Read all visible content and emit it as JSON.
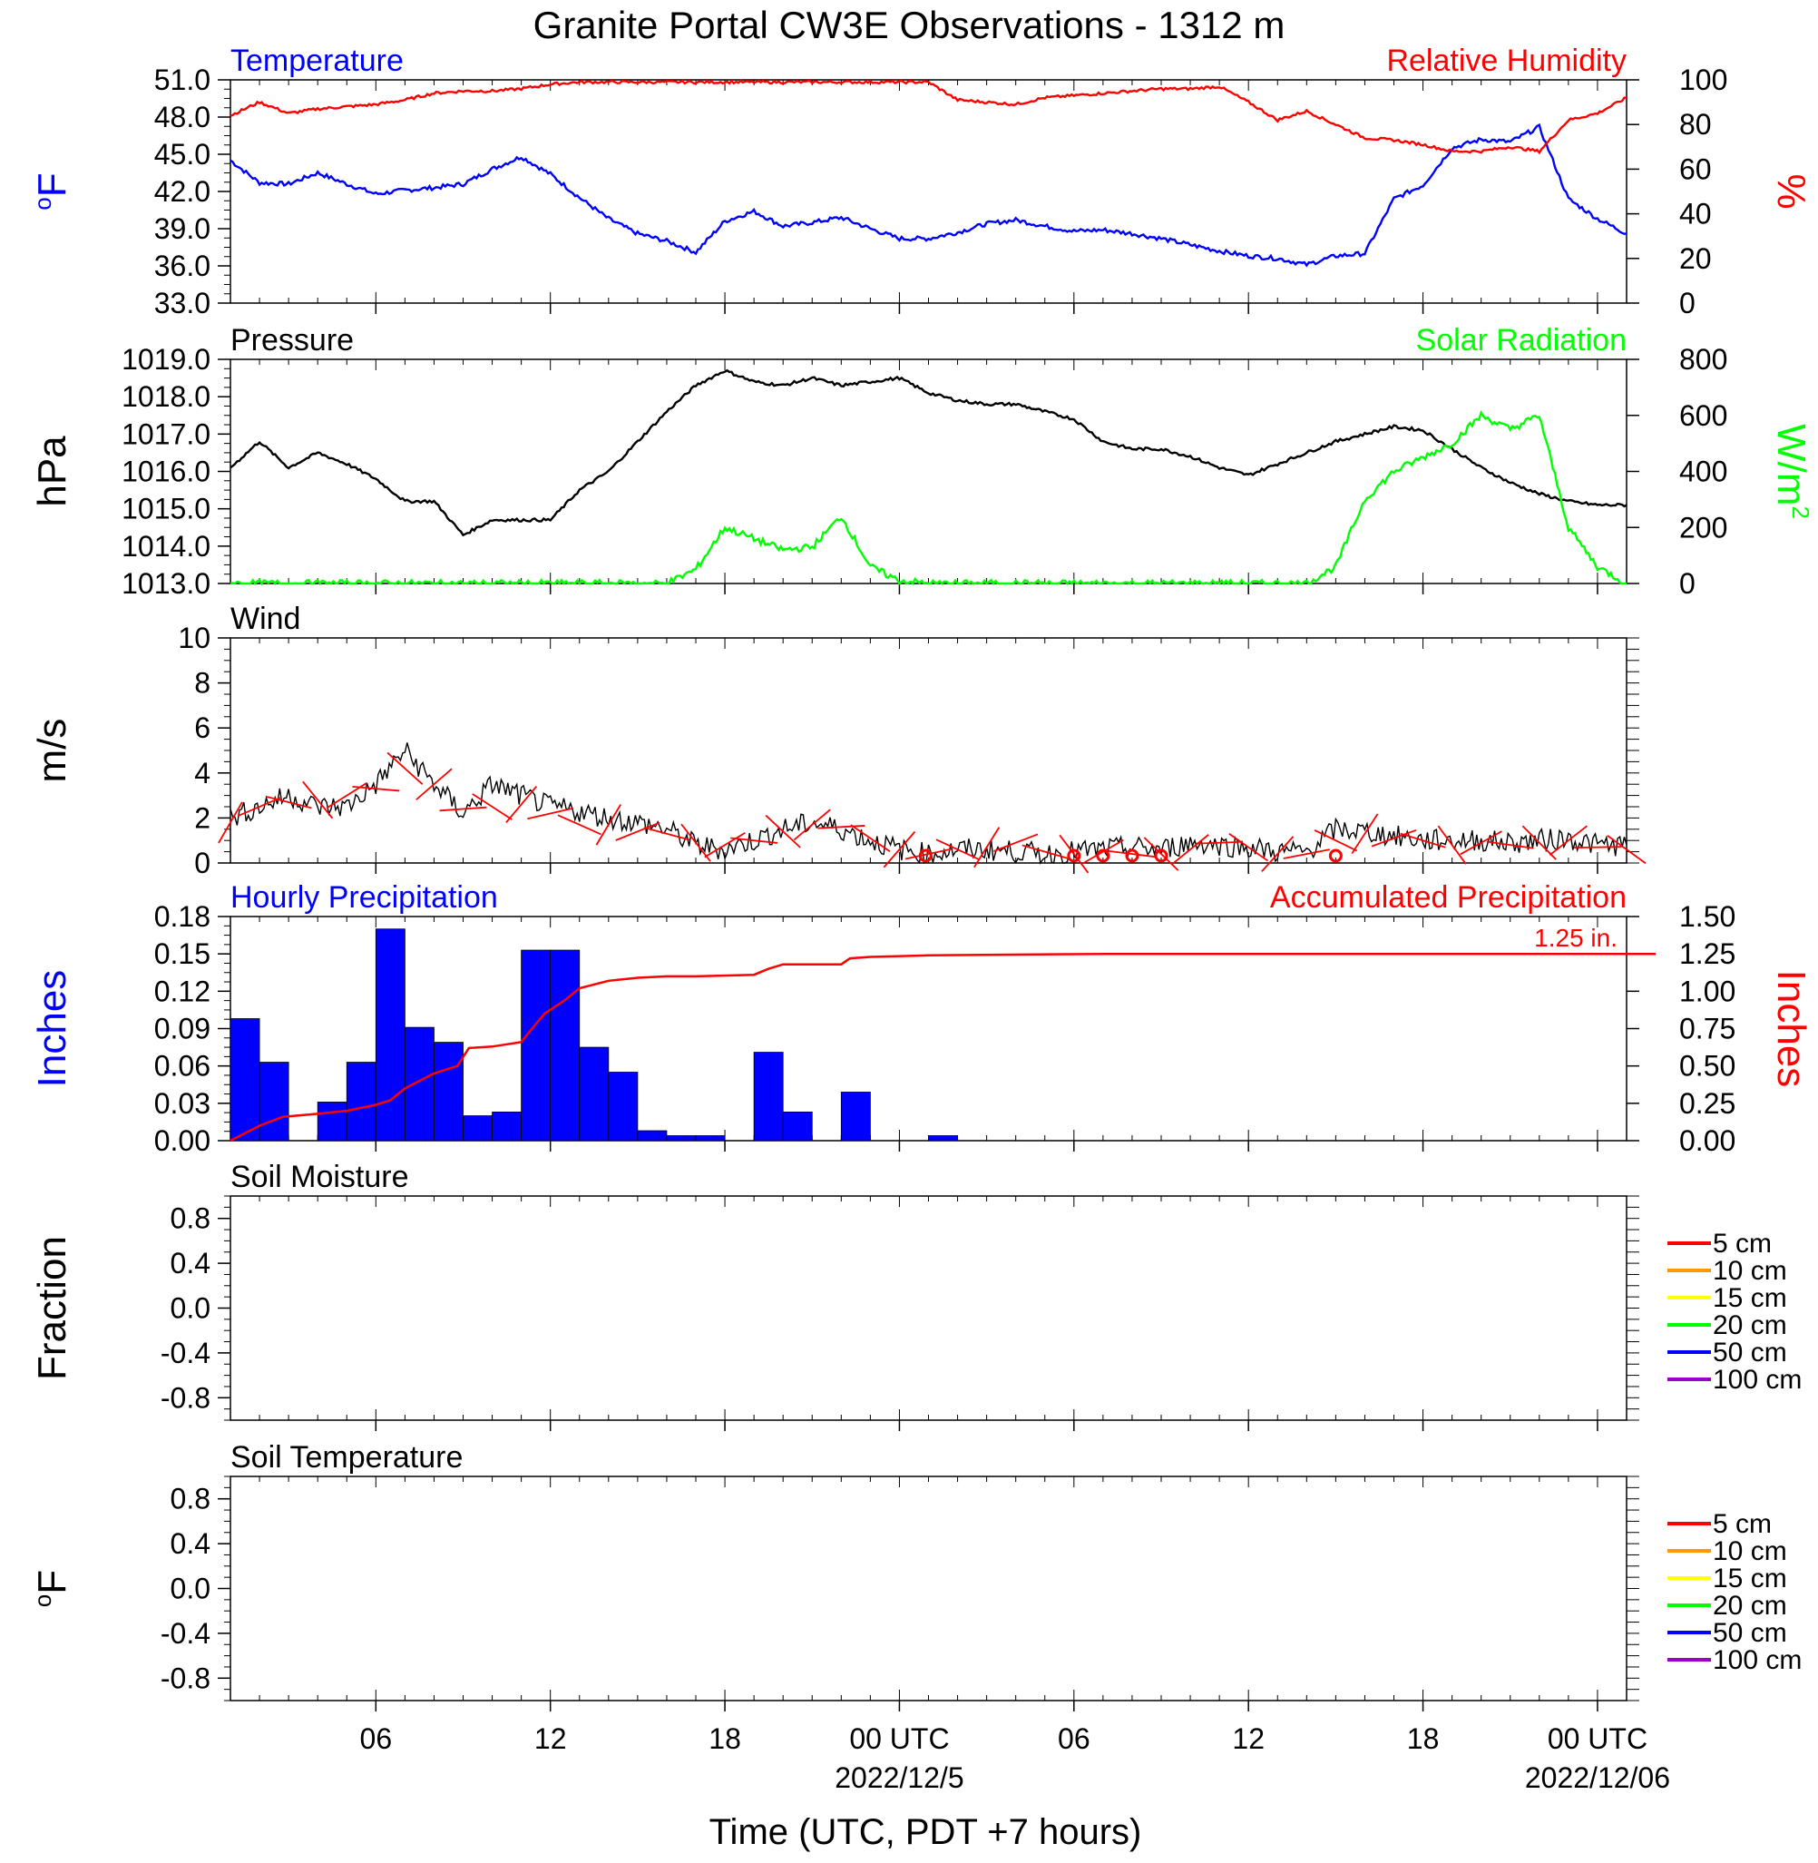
{
  "title": "Granite Portal CW3E Observations - 1312 m",
  "x_axis": {
    "label": "Time (UTC, PDT +7 hours)",
    "ticks": [
      "06",
      "12",
      "18",
      "00 UTC",
      "06",
      "12",
      "18",
      "00 UTC"
    ],
    "date_labels": [
      "2022/12/5",
      "2022/12/06"
    ]
  },
  "chart_data": [
    {
      "type": "line",
      "id": "temp-rh",
      "left_title": "Temperature",
      "right_title": "Relative Humidity",
      "left_ylabel": "oF",
      "right_ylabel": "%",
      "left_ylim": [
        33.0,
        51.0
      ],
      "right_ylim": [
        0,
        100
      ],
      "left_ticks": [
        "51.0",
        "48.0",
        "45.0",
        "42.0",
        "39.0",
        "36.0",
        "33.0"
      ],
      "right_ticks": [
        "100",
        "80",
        "60",
        "40",
        "20",
        "0"
      ],
      "x_hours": [
        1,
        2,
        3,
        4,
        5,
        6,
        7,
        8,
        9,
        10,
        11,
        12,
        13,
        14,
        15,
        16,
        17,
        18,
        19,
        20,
        21,
        22,
        23,
        24,
        25,
        26,
        27,
        28,
        29,
        30,
        31,
        32,
        33,
        34,
        35,
        36,
        37,
        38,
        39,
        40,
        41,
        42,
        43,
        44,
        45,
        46,
        47,
        48,
        49
      ],
      "series": [
        {
          "name": "Temperature",
          "axis": "left",
          "color": "#0000ff",
          "values": [
            44.5,
            42.7,
            42.6,
            43.5,
            42.6,
            41.8,
            42.1,
            42.3,
            42.6,
            43.8,
            44.8,
            43.4,
            41.5,
            39.8,
            38.6,
            38.0,
            37.1,
            39.6,
            40.4,
            39.2,
            39.5,
            39.9,
            39.0,
            38.2,
            38.2,
            38.7,
            39.4,
            39.7,
            39.2,
            38.8,
            38.9,
            38.6,
            38.2,
            37.7,
            37.2,
            36.8,
            36.6,
            36.1,
            36.8,
            37.0,
            41.4,
            42.5,
            45.5,
            46.2,
            46.0,
            47.2,
            41.4,
            39.8,
            38.6
          ]
        },
        {
          "name": "Relative Humidity",
          "axis": "right",
          "color": "#ff0000",
          "values": [
            84,
            90,
            85,
            87,
            88,
            89,
            91,
            94,
            95,
            95,
            96,
            98,
            99,
            99,
            99,
            99,
            99,
            99,
            99,
            99,
            99,
            99,
            99,
            99,
            99,
            91,
            90,
            89,
            92,
            93,
            94,
            95,
            96,
            96,
            97,
            90,
            82,
            86,
            80,
            74,
            73,
            71,
            68,
            68,
            70,
            68,
            82,
            85,
            92
          ]
        }
      ]
    },
    {
      "type": "line",
      "id": "pressure-solar",
      "left_title": "Pressure",
      "right_title": "Solar Radiation",
      "left_ylabel": "hPa",
      "right_ylabel": "W/m2",
      "left_ylim": [
        1013.0,
        1019.0
      ],
      "right_ylim": [
        0,
        800
      ],
      "left_ticks": [
        "1019.0",
        "1018.0",
        "1017.0",
        "1016.0",
        "1015.0",
        "1014.0",
        "1013.0"
      ],
      "right_ticks": [
        "800",
        "600",
        "400",
        "200",
        "0"
      ],
      "x_hours": [
        1,
        2,
        3,
        4,
        5,
        6,
        7,
        8,
        9,
        10,
        11,
        12,
        13,
        14,
        15,
        16,
        17,
        18,
        19,
        20,
        21,
        22,
        23,
        24,
        25,
        26,
        27,
        28,
        29,
        30,
        31,
        32,
        33,
        34,
        35,
        36,
        37,
        38,
        39,
        40,
        41,
        42,
        43,
        44,
        45,
        46,
        47,
        48,
        49
      ],
      "series": [
        {
          "name": "Pressure",
          "axis": "left",
          "color": "#000000",
          "values": [
            1016.1,
            1016.8,
            1016.1,
            1016.5,
            1016.2,
            1015.8,
            1015.2,
            1015.2,
            1014.3,
            1014.7,
            1014.7,
            1014.7,
            1015.5,
            1016.0,
            1016.8,
            1017.6,
            1018.3,
            1018.7,
            1018.4,
            1018.3,
            1018.5,
            1018.3,
            1018.4,
            1018.5,
            1018.1,
            1017.9,
            1017.8,
            1017.8,
            1017.6,
            1017.4,
            1016.8,
            1016.6,
            1016.6,
            1016.4,
            1016.1,
            1015.9,
            1016.2,
            1016.5,
            1016.8,
            1017.0,
            1017.2,
            1017.1,
            1016.6,
            1016.1,
            1015.7,
            1015.4,
            1015.2,
            1015.1,
            1015.1
          ]
        },
        {
          "name": "Solar Radiation",
          "axis": "right",
          "color": "#00ff00",
          "values": [
            0,
            0,
            0,
            0,
            0,
            0,
            0,
            0,
            0,
            0,
            0,
            0,
            0,
            0,
            0,
            0,
            50,
            200,
            160,
            120,
            130,
            240,
            60,
            10,
            0,
            0,
            0,
            0,
            0,
            0,
            0,
            0,
            0,
            0,
            0,
            0,
            0,
            0,
            60,
            300,
            400,
            450,
            500,
            600,
            550,
            600,
            200,
            60,
            0
          ]
        }
      ]
    },
    {
      "type": "line",
      "id": "wind",
      "left_title": "Wind",
      "left_ylabel": "m/s",
      "left_ylim": [
        0,
        10
      ],
      "left_ticks": [
        "10",
        "8",
        "6",
        "4",
        "2",
        "0"
      ],
      "x_hours": [
        1,
        2,
        3,
        4,
        5,
        6,
        7,
        8,
        9,
        10,
        11,
        12,
        13,
        14,
        15,
        16,
        17,
        18,
        19,
        20,
        21,
        22,
        23,
        24,
        25,
        26,
        27,
        28,
        29,
        30,
        31,
        32,
        33,
        34,
        35,
        36,
        37,
        38,
        39,
        40,
        41,
        42,
        43,
        44,
        45,
        46,
        47,
        48,
        49
      ],
      "series": [
        {
          "name": "Wind speed",
          "axis": "left",
          "color": "#000000",
          "values": [
            2.0,
            2.5,
            3.0,
            2.5,
            2.5,
            3.5,
            5.0,
            3.5,
            2.2,
            3.5,
            3.0,
            2.5,
            2.3,
            2.0,
            1.8,
            1.5,
            0.8,
            0.6,
            1.0,
            1.5,
            1.8,
            1.5,
            1.0,
            0.6,
            0.4,
            0.6,
            0.6,
            0.5,
            0.4,
            0.5,
            0.6,
            0.7,
            0.6,
            0.9,
            0.8,
            0.7,
            0.5,
            0.5,
            1.5,
            1.4,
            1.2,
            1.0,
            1.0,
            1.0,
            0.9,
            1.0,
            1.1,
            0.8,
            0.8
          ]
        },
        {
          "name": "Wind barbs",
          "axis": "left",
          "color": "#ff0000",
          "values": [
            1.8,
            2.5,
            2.7,
            2.8,
            3.0,
            3.3,
            4.2,
            3.5,
            2.4,
            2.5,
            2.6,
            2.2,
            1.7,
            1.7,
            1.4,
            1.3,
            0.9,
            0.8,
            1.0,
            1.4,
            1.7,
            1.6,
            1.1,
            0.6,
            0.4,
            0.6,
            0.7,
            0.9,
            0.5,
            0.4,
            0.5,
            0.4,
            0.4,
            0.6,
            0.9,
            0.7,
            0.4,
            0.4,
            1.0,
            1.3,
            1.1,
            1.0,
            0.8,
            0.9,
            0.8,
            0.9,
            1.0,
            0.7,
            0.6
          ]
        }
      ],
      "calm_markers_hours": [
        24.9,
        30,
        31,
        32,
        33,
        39
      ]
    },
    {
      "type": "bar",
      "id": "precip",
      "left_title": "Hourly Precipitation",
      "right_title": "Accumulated Precipitation",
      "left_ylabel": "Inches",
      "right_ylabel": "Inches",
      "left_ylim": [
        0,
        0.18
      ],
      "right_ylim": [
        0,
        1.5
      ],
      "left_ticks": [
        "0.18",
        "0.15",
        "0.12",
        "0.09",
        "0.06",
        "0.03",
        "0.00"
      ],
      "right_ticks": [
        "1.50",
        "1.25",
        "1.00",
        "0.75",
        "0.50",
        "0.25",
        "0.00"
      ],
      "total_label": "1.25 in.",
      "hourly_bars": [
        {
          "hour": 0,
          "value": 0.098
        },
        {
          "hour": 1,
          "value": 0.063
        },
        {
          "hour": 2,
          "value": 0.0
        },
        {
          "hour": 3,
          "value": 0.031
        },
        {
          "hour": 4,
          "value": 0.063
        },
        {
          "hour": 5,
          "value": 0.17
        },
        {
          "hour": 6,
          "value": 0.091
        },
        {
          "hour": 7,
          "value": 0.079
        },
        {
          "hour": 8,
          "value": 0.02
        },
        {
          "hour": 9,
          "value": 0.023
        },
        {
          "hour": 10,
          "value": 0.153
        },
        {
          "hour": 11,
          "value": 0.153
        },
        {
          "hour": 12,
          "value": 0.075
        },
        {
          "hour": 13,
          "value": 0.055
        },
        {
          "hour": 14,
          "value": 0.008
        },
        {
          "hour": 15,
          "value": 0.004
        },
        {
          "hour": 16,
          "value": 0.004
        },
        {
          "hour": 17,
          "value": 0.0
        },
        {
          "hour": 18,
          "value": 0.071
        },
        {
          "hour": 19,
          "value": 0.023
        },
        {
          "hour": 20,
          "value": 0.0
        },
        {
          "hour": 21,
          "value": 0.039
        },
        {
          "hour": 22,
          "value": 0.0
        },
        {
          "hour": 23,
          "value": 0.0
        },
        {
          "hour": 24,
          "value": 0.004
        }
      ],
      "accumulated": {
        "name": "Accumulated Precipitation",
        "color": "#ff0000",
        "hours": [
          0,
          1,
          1.8,
          3,
          4,
          5,
          5.5,
          6,
          7,
          7.8,
          8.2,
          9,
          10,
          10.2,
          10.8,
          11.5,
          12,
          13,
          14,
          15,
          16,
          18,
          18.5,
          19,
          21,
          21.3,
          22,
          24,
          30,
          49
        ],
        "values": [
          0.0,
          0.1,
          0.16,
          0.18,
          0.2,
          0.24,
          0.27,
          0.35,
          0.45,
          0.5,
          0.62,
          0.63,
          0.66,
          0.71,
          0.85,
          0.94,
          1.02,
          1.07,
          1.09,
          1.1,
          1.1,
          1.11,
          1.15,
          1.18,
          1.18,
          1.22,
          1.23,
          1.24,
          1.25,
          1.25
        ]
      }
    },
    {
      "type": "line",
      "id": "soil-moisture",
      "left_title": "Soil Moisture",
      "left_ylabel": "Fraction",
      "left_ylim": [
        -1.0,
        1.0
      ],
      "left_ticks": [
        "0.8",
        "0.4",
        "0.0",
        "-0.4",
        "-0.8"
      ],
      "legend": [
        {
          "label": "5 cm",
          "color": "#ff0000"
        },
        {
          "label": "10 cm",
          "color": "#ff9900"
        },
        {
          "label": "15 cm",
          "color": "#ffff00"
        },
        {
          "label": "20 cm",
          "color": "#00ff00"
        },
        {
          "label": "50 cm",
          "color": "#0000ff"
        },
        {
          "label": "100 cm",
          "color": "#9900cc"
        }
      ],
      "series": []
    },
    {
      "type": "line",
      "id": "soil-temperature",
      "left_title": "Soil Temperature",
      "left_ylabel": "oF",
      "left_ylim": [
        -1.0,
        1.0
      ],
      "left_ticks": [
        "0.8",
        "0.4",
        "0.0",
        "-0.4",
        "-0.8"
      ],
      "legend": [
        {
          "label": "5 cm",
          "color": "#ff0000"
        },
        {
          "label": "10 cm",
          "color": "#ff9900"
        },
        {
          "label": "15 cm",
          "color": "#ffff00"
        },
        {
          "label": "20 cm",
          "color": "#00ff00"
        },
        {
          "label": "50 cm",
          "color": "#0000ff"
        },
        {
          "label": "100 cm",
          "color": "#9900cc"
        }
      ],
      "series": []
    }
  ],
  "colors": {
    "left_title_blue": "#0000ff",
    "right_title_red": "#ff0000",
    "solar_green": "#00ff00",
    "axis": "#000000"
  }
}
